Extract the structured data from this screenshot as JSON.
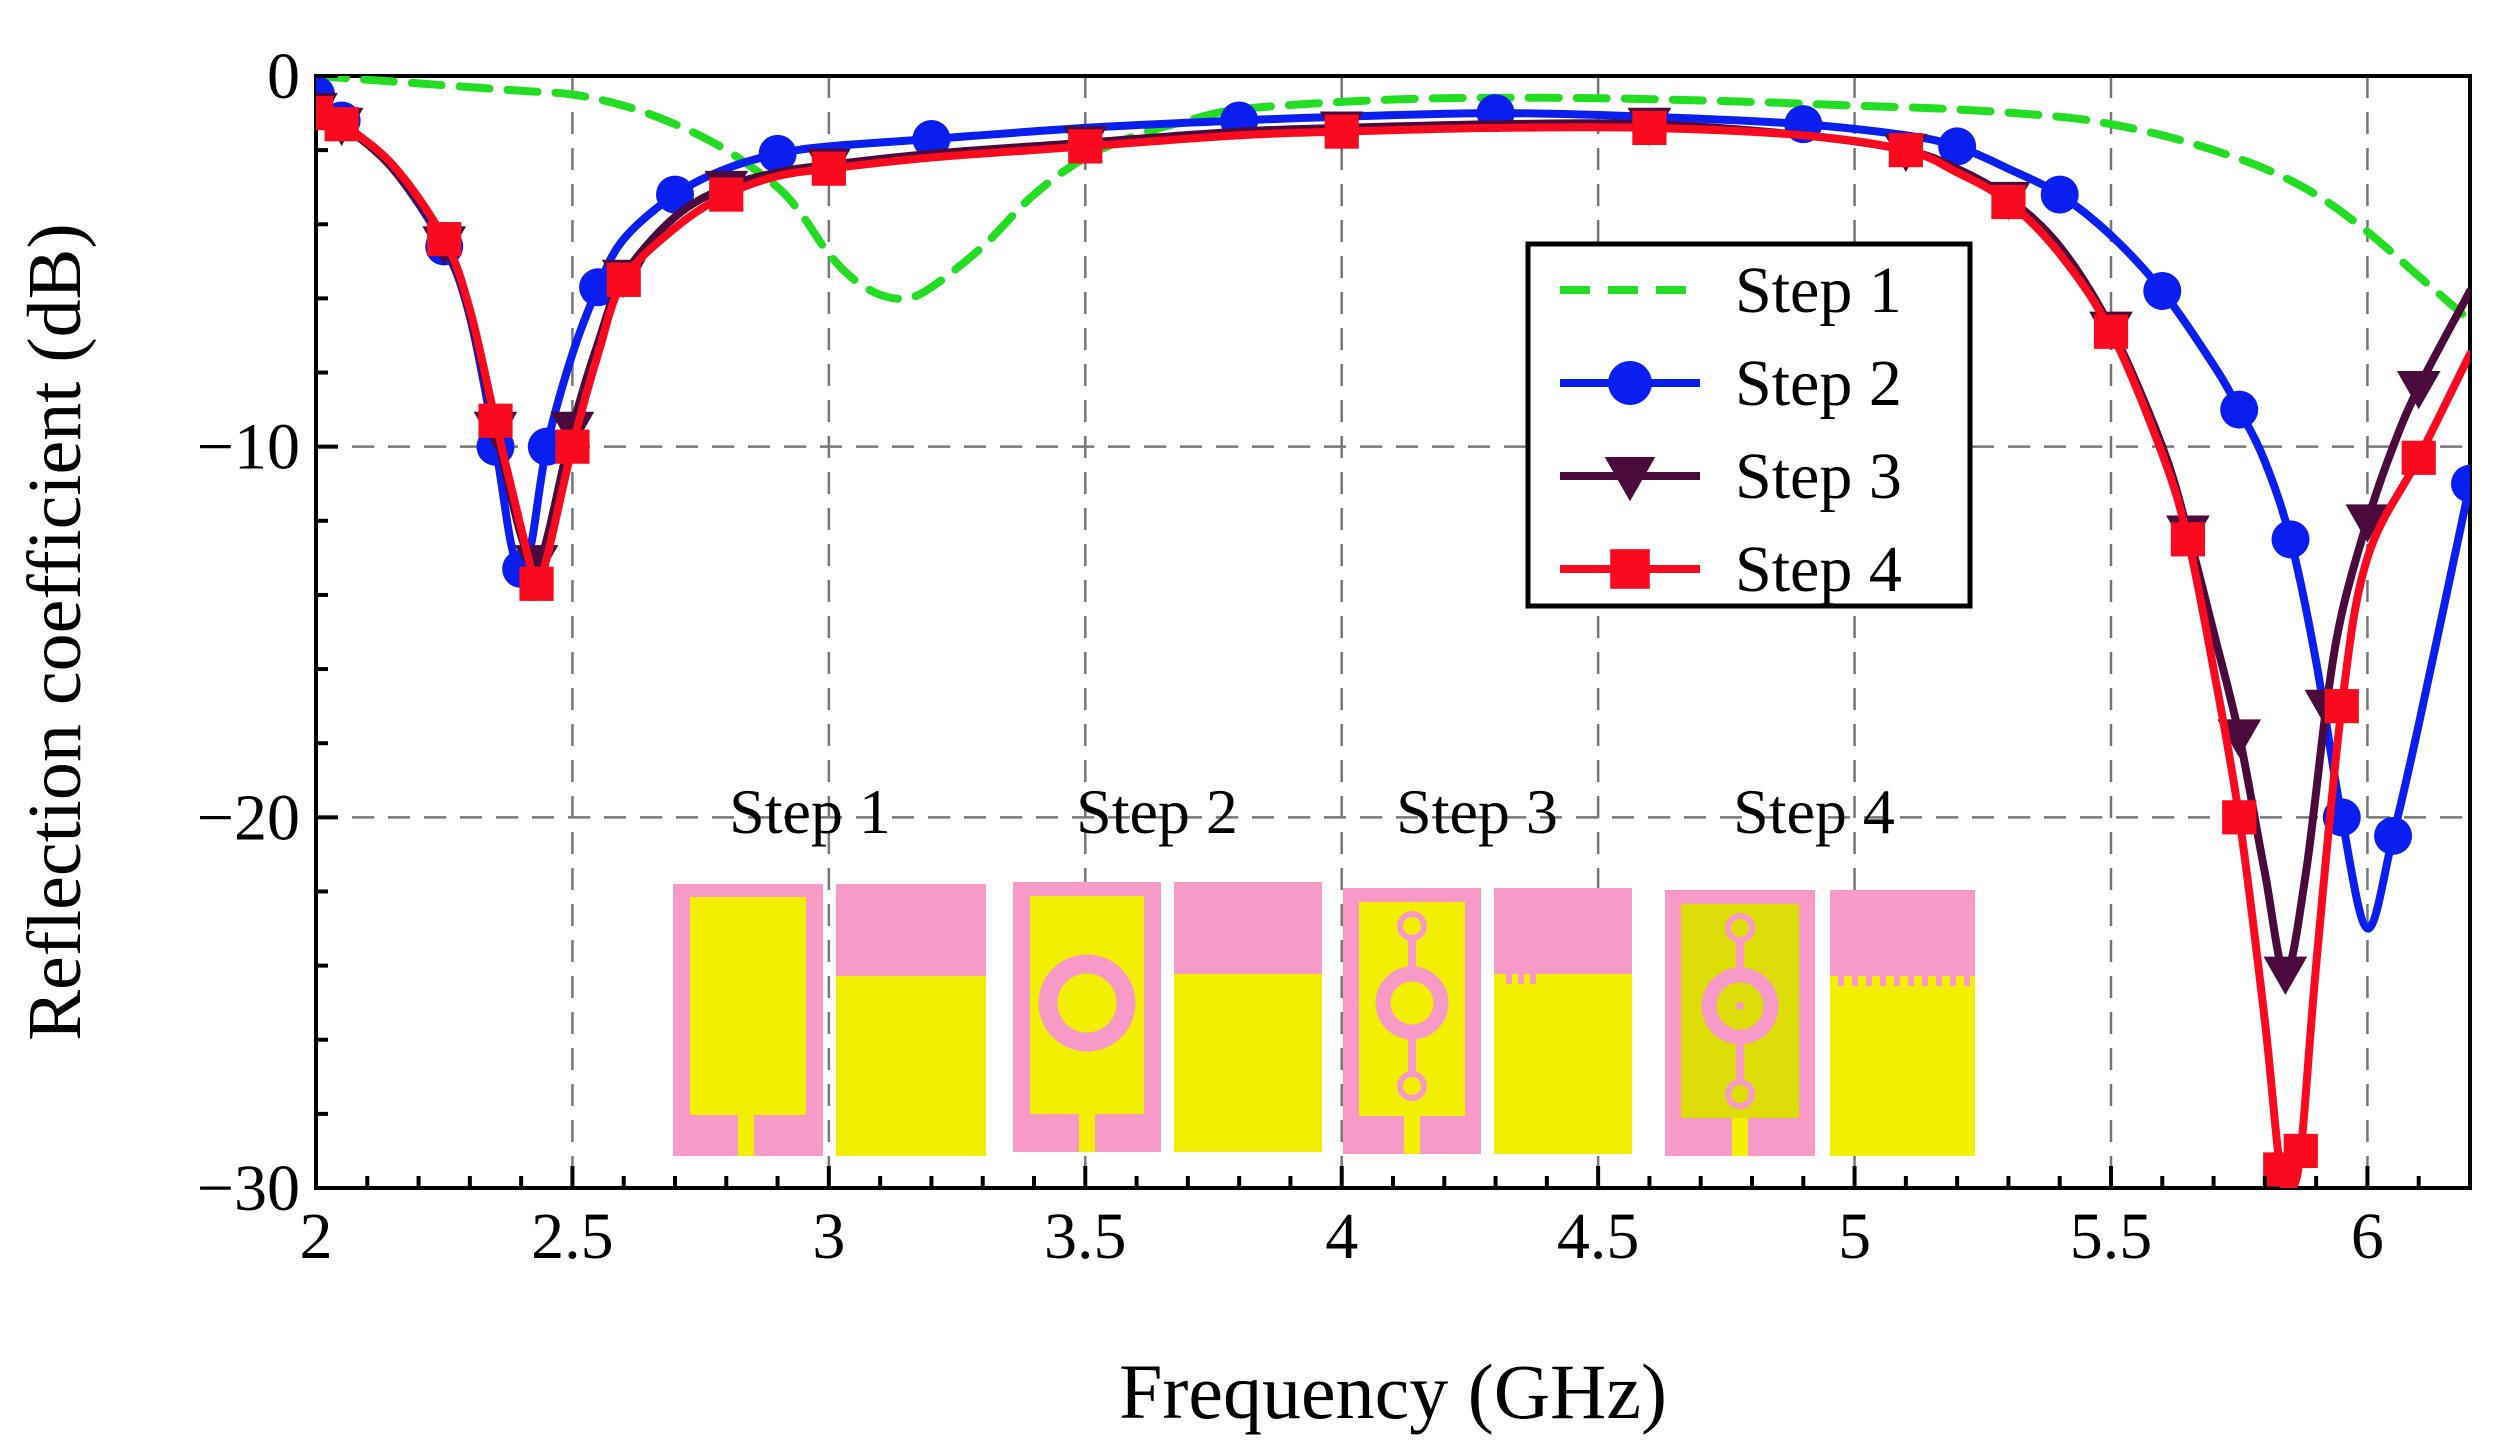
{
  "chart_data": {
    "type": "line",
    "title": "",
    "xlabel": "Frequency (GHz)",
    "ylabel": "Reflection coefficient (dB)",
    "xlim": [
      2,
      6.2
    ],
    "ylim": [
      -30,
      0
    ],
    "xticks": [
      2,
      2.5,
      3,
      3.5,
      4,
      4.5,
      5,
      5.5,
      6
    ],
    "xtick_labels": [
      "2",
      "2.5",
      "3",
      "3.5",
      "4",
      "4.5",
      "5",
      "5.5",
      "6"
    ],
    "yticks": [
      0,
      -10,
      -20,
      -30
    ],
    "ytick_labels": [
      "0",
      "−10",
      "−20",
      "−30"
    ],
    "grid": true,
    "legend_position": "top-right",
    "series": [
      {
        "name": "Step 1",
        "color": "#22dd22",
        "style": "dashed",
        "marker": "none",
        "x": [
          2.0,
          2.1,
          2.2,
          2.3,
          2.4,
          2.5,
          2.6,
          2.7,
          2.8,
          2.9,
          2.95,
          3.0,
          3.05,
          3.1,
          3.15,
          3.2,
          3.3,
          3.4,
          3.5,
          3.6,
          3.7,
          3.8,
          4.0,
          4.2,
          4.5,
          4.8,
          5.0,
          5.2,
          5.4,
          5.5,
          5.6,
          5.7,
          5.8,
          5.9,
          6.0,
          6.1,
          6.2
        ],
        "y": [
          0,
          -0.1,
          -0.2,
          -0.3,
          -0.4,
          -0.5,
          -0.8,
          -1.3,
          -2.0,
          -3.0,
          -3.8,
          -4.8,
          -5.5,
          -5.9,
          -6.0,
          -5.7,
          -4.6,
          -3.2,
          -2.2,
          -1.6,
          -1.2,
          -0.9,
          -0.7,
          -0.6,
          -0.6,
          -0.7,
          -0.8,
          -0.9,
          -1.1,
          -1.3,
          -1.6,
          -2.0,
          -2.5,
          -3.2,
          -4.2,
          -5.4,
          -6.6
        ]
      },
      {
        "name": "Step 2",
        "color": "#0a1fef",
        "style": "solid",
        "marker": "circle",
        "x": [
          2.0,
          2.05,
          2.15,
          2.25,
          2.3,
          2.35,
          2.38,
          2.4,
          2.42,
          2.45,
          2.5,
          2.55,
          2.6,
          2.7,
          2.8,
          2.9,
          3.0,
          3.2,
          3.5,
          3.8,
          4.0,
          4.3,
          4.6,
          4.9,
          5.1,
          5.2,
          5.3,
          5.4,
          5.5,
          5.6,
          5.7,
          5.75,
          5.8,
          5.85,
          5.9,
          5.95,
          6.0,
          6.05,
          6.1,
          6.2
        ],
        "y": [
          -0.5,
          -1.2,
          -2.5,
          -4.6,
          -6.5,
          -10.0,
          -12.6,
          -13.3,
          -12.6,
          -10.0,
          -7.5,
          -5.7,
          -4.4,
          -3.2,
          -2.5,
          -2.1,
          -1.9,
          -1.7,
          -1.4,
          -1.2,
          -1.1,
          -1.0,
          -1.1,
          -1.3,
          -1.6,
          -1.9,
          -2.5,
          -3.2,
          -4.3,
          -5.8,
          -7.8,
          -9.0,
          -10.4,
          -12.5,
          -15.8,
          -20.0,
          -23.0,
          -20.5,
          -17.5,
          -11.0
        ]
      },
      {
        "name": "Step 3",
        "color": "#4b0a3c",
        "style": "solid",
        "marker": "triangle-down",
        "x": [
          2.0,
          2.05,
          2.15,
          2.25,
          2.3,
          2.35,
          2.4,
          2.43,
          2.45,
          2.5,
          2.55,
          2.6,
          2.7,
          2.8,
          2.9,
          3.0,
          3.2,
          3.5,
          3.8,
          4.0,
          4.3,
          4.6,
          4.9,
          5.1,
          5.2,
          5.3,
          5.4,
          5.5,
          5.6,
          5.65,
          5.7,
          5.75,
          5.8,
          5.84,
          5.88,
          5.92,
          5.95,
          6.0,
          6.05,
          6.1,
          6.2
        ],
        "y": [
          -0.9,
          -1.3,
          -2.5,
          -4.5,
          -6.4,
          -9.5,
          -12.4,
          -13.1,
          -12.5,
          -9.5,
          -7.2,
          -5.4,
          -3.8,
          -3.0,
          -2.6,
          -2.4,
          -2.1,
          -1.8,
          -1.5,
          -1.4,
          -1.3,
          -1.3,
          -1.6,
          -2.0,
          -2.5,
          -3.3,
          -4.6,
          -6.8,
          -10.0,
          -12.3,
          -15.0,
          -17.8,
          -21.5,
          -24.2,
          -21.5,
          -17.0,
          -14.5,
          -12.0,
          -10.0,
          -8.4,
          -5.8
        ]
      },
      {
        "name": "Step 4",
        "color": "#fa0a1e",
        "style": "solid",
        "marker": "square",
        "x": [
          2.0,
          2.05,
          2.15,
          2.25,
          2.3,
          2.35,
          2.4,
          2.43,
          2.45,
          2.5,
          2.55,
          2.6,
          2.7,
          2.8,
          2.9,
          3.0,
          3.2,
          3.5,
          3.8,
          4.0,
          4.3,
          4.6,
          4.9,
          5.1,
          5.2,
          5.3,
          5.4,
          5.5,
          5.6,
          5.65,
          5.7,
          5.75,
          5.8,
          5.83,
          5.85,
          5.87,
          5.9,
          5.95,
          6.0,
          6.1,
          6.2
        ],
        "y": [
          -1.0,
          -1.3,
          -2.4,
          -4.4,
          -6.3,
          -9.3,
          -12.2,
          -13.7,
          -13.0,
          -10.0,
          -7.5,
          -5.5,
          -4.1,
          -3.2,
          -2.7,
          -2.5,
          -2.2,
          -1.9,
          -1.6,
          -1.5,
          -1.4,
          -1.4,
          -1.6,
          -2.0,
          -2.6,
          -3.4,
          -4.8,
          -6.9,
          -10.2,
          -12.5,
          -16.0,
          -20.0,
          -25.5,
          -29.5,
          -30.0,
          -29.0,
          -24.0,
          -17.0,
          -13.0,
          -10.3,
          -7.5
        ]
      }
    ],
    "annotations": {
      "inset_labels": [
        "Step 1",
        "Step 2",
        "Step 3",
        "Step 4"
      ]
    }
  }
}
